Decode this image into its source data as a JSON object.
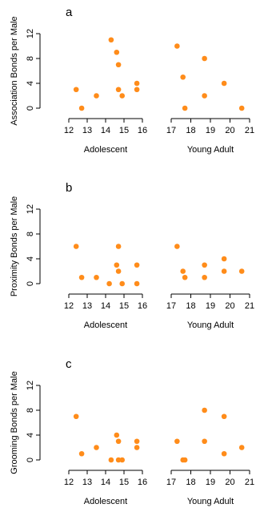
{
  "chart_data": [
    {
      "type": "scatter",
      "panel_label": "a",
      "ylabel": "Association Bonds per Male",
      "ylim": [
        0,
        12
      ],
      "yticks": [
        0,
        4,
        8,
        12
      ],
      "color": "#ff8c1a",
      "grid": false,
      "groups": [
        {
          "label": "Adolescent",
          "xlim": [
            12,
            16
          ],
          "xticks": [
            12,
            13,
            14,
            15,
            16
          ],
          "points": [
            [
              12.4,
              3
            ],
            [
              12.7,
              0
            ],
            [
              13.5,
              2
            ],
            [
              14.3,
              11
            ],
            [
              14.6,
              9
            ],
            [
              14.7,
              7
            ],
            [
              14.7,
              3
            ],
            [
              14.9,
              2
            ],
            [
              15.7,
              4
            ],
            [
              15.7,
              3
            ]
          ]
        },
        {
          "label": "Young Adult",
          "xlim": [
            17,
            21
          ],
          "xticks": [
            17,
            18,
            19,
            20,
            21
          ],
          "points": [
            [
              17.3,
              10
            ],
            [
              17.6,
              5
            ],
            [
              17.7,
              0
            ],
            [
              18.7,
              8
            ],
            [
              18.7,
              2
            ],
            [
              19.7,
              4
            ],
            [
              20.6,
              0
            ]
          ]
        }
      ]
    },
    {
      "type": "scatter",
      "panel_label": "b",
      "ylabel": "Proximity Bonds per Male",
      "ylim": [
        0,
        12
      ],
      "yticks": [
        0,
        4,
        8,
        12
      ],
      "color": "#ff8c1a",
      "grid": false,
      "groups": [
        {
          "label": "Adolescent",
          "xlim": [
            12,
            16
          ],
          "xticks": [
            12,
            13,
            14,
            15,
            16
          ],
          "points": [
            [
              12.4,
              6
            ],
            [
              12.7,
              1
            ],
            [
              13.5,
              1
            ],
            [
              14.2,
              0
            ],
            [
              14.6,
              3
            ],
            [
              14.7,
              6
            ],
            [
              14.7,
              2
            ],
            [
              14.9,
              0
            ],
            [
              15.7,
              3
            ],
            [
              15.7,
              0
            ]
          ]
        },
        {
          "label": "Young Adult",
          "xlim": [
            17,
            21
          ],
          "xticks": [
            17,
            18,
            19,
            20,
            21
          ],
          "points": [
            [
              17.3,
              6
            ],
            [
              17.6,
              2
            ],
            [
              17.7,
              1
            ],
            [
              18.7,
              3
            ],
            [
              18.7,
              1
            ],
            [
              19.7,
              4
            ],
            [
              19.7,
              2
            ],
            [
              20.6,
              2
            ]
          ]
        }
      ]
    },
    {
      "type": "scatter",
      "panel_label": "c",
      "ylabel": "Grooming Bonds per Male",
      "ylim": [
        0,
        12
      ],
      "yticks": [
        0,
        4,
        8,
        12
      ],
      "color": "#ff8c1a",
      "grid": false,
      "groups": [
        {
          "label": "Adolescent",
          "xlim": [
            12,
            16
          ],
          "xticks": [
            12,
            13,
            14,
            15,
            16
          ],
          "points": [
            [
              12.4,
              7
            ],
            [
              12.7,
              1
            ],
            [
              13.5,
              2
            ],
            [
              14.3,
              0
            ],
            [
              14.6,
              4
            ],
            [
              14.7,
              3
            ],
            [
              14.7,
              0
            ],
            [
              14.9,
              0
            ],
            [
              15.7,
              3
            ],
            [
              15.7,
              2
            ]
          ]
        },
        {
          "label": "Young Adult",
          "xlim": [
            17,
            21
          ],
          "xticks": [
            17,
            18,
            19,
            20,
            21
          ],
          "points": [
            [
              17.3,
              3
            ],
            [
              17.6,
              0
            ],
            [
              17.7,
              0
            ],
            [
              18.7,
              8
            ],
            [
              18.7,
              3
            ],
            [
              19.7,
              7
            ],
            [
              19.7,
              1
            ],
            [
              20.6,
              2
            ]
          ]
        }
      ]
    }
  ]
}
